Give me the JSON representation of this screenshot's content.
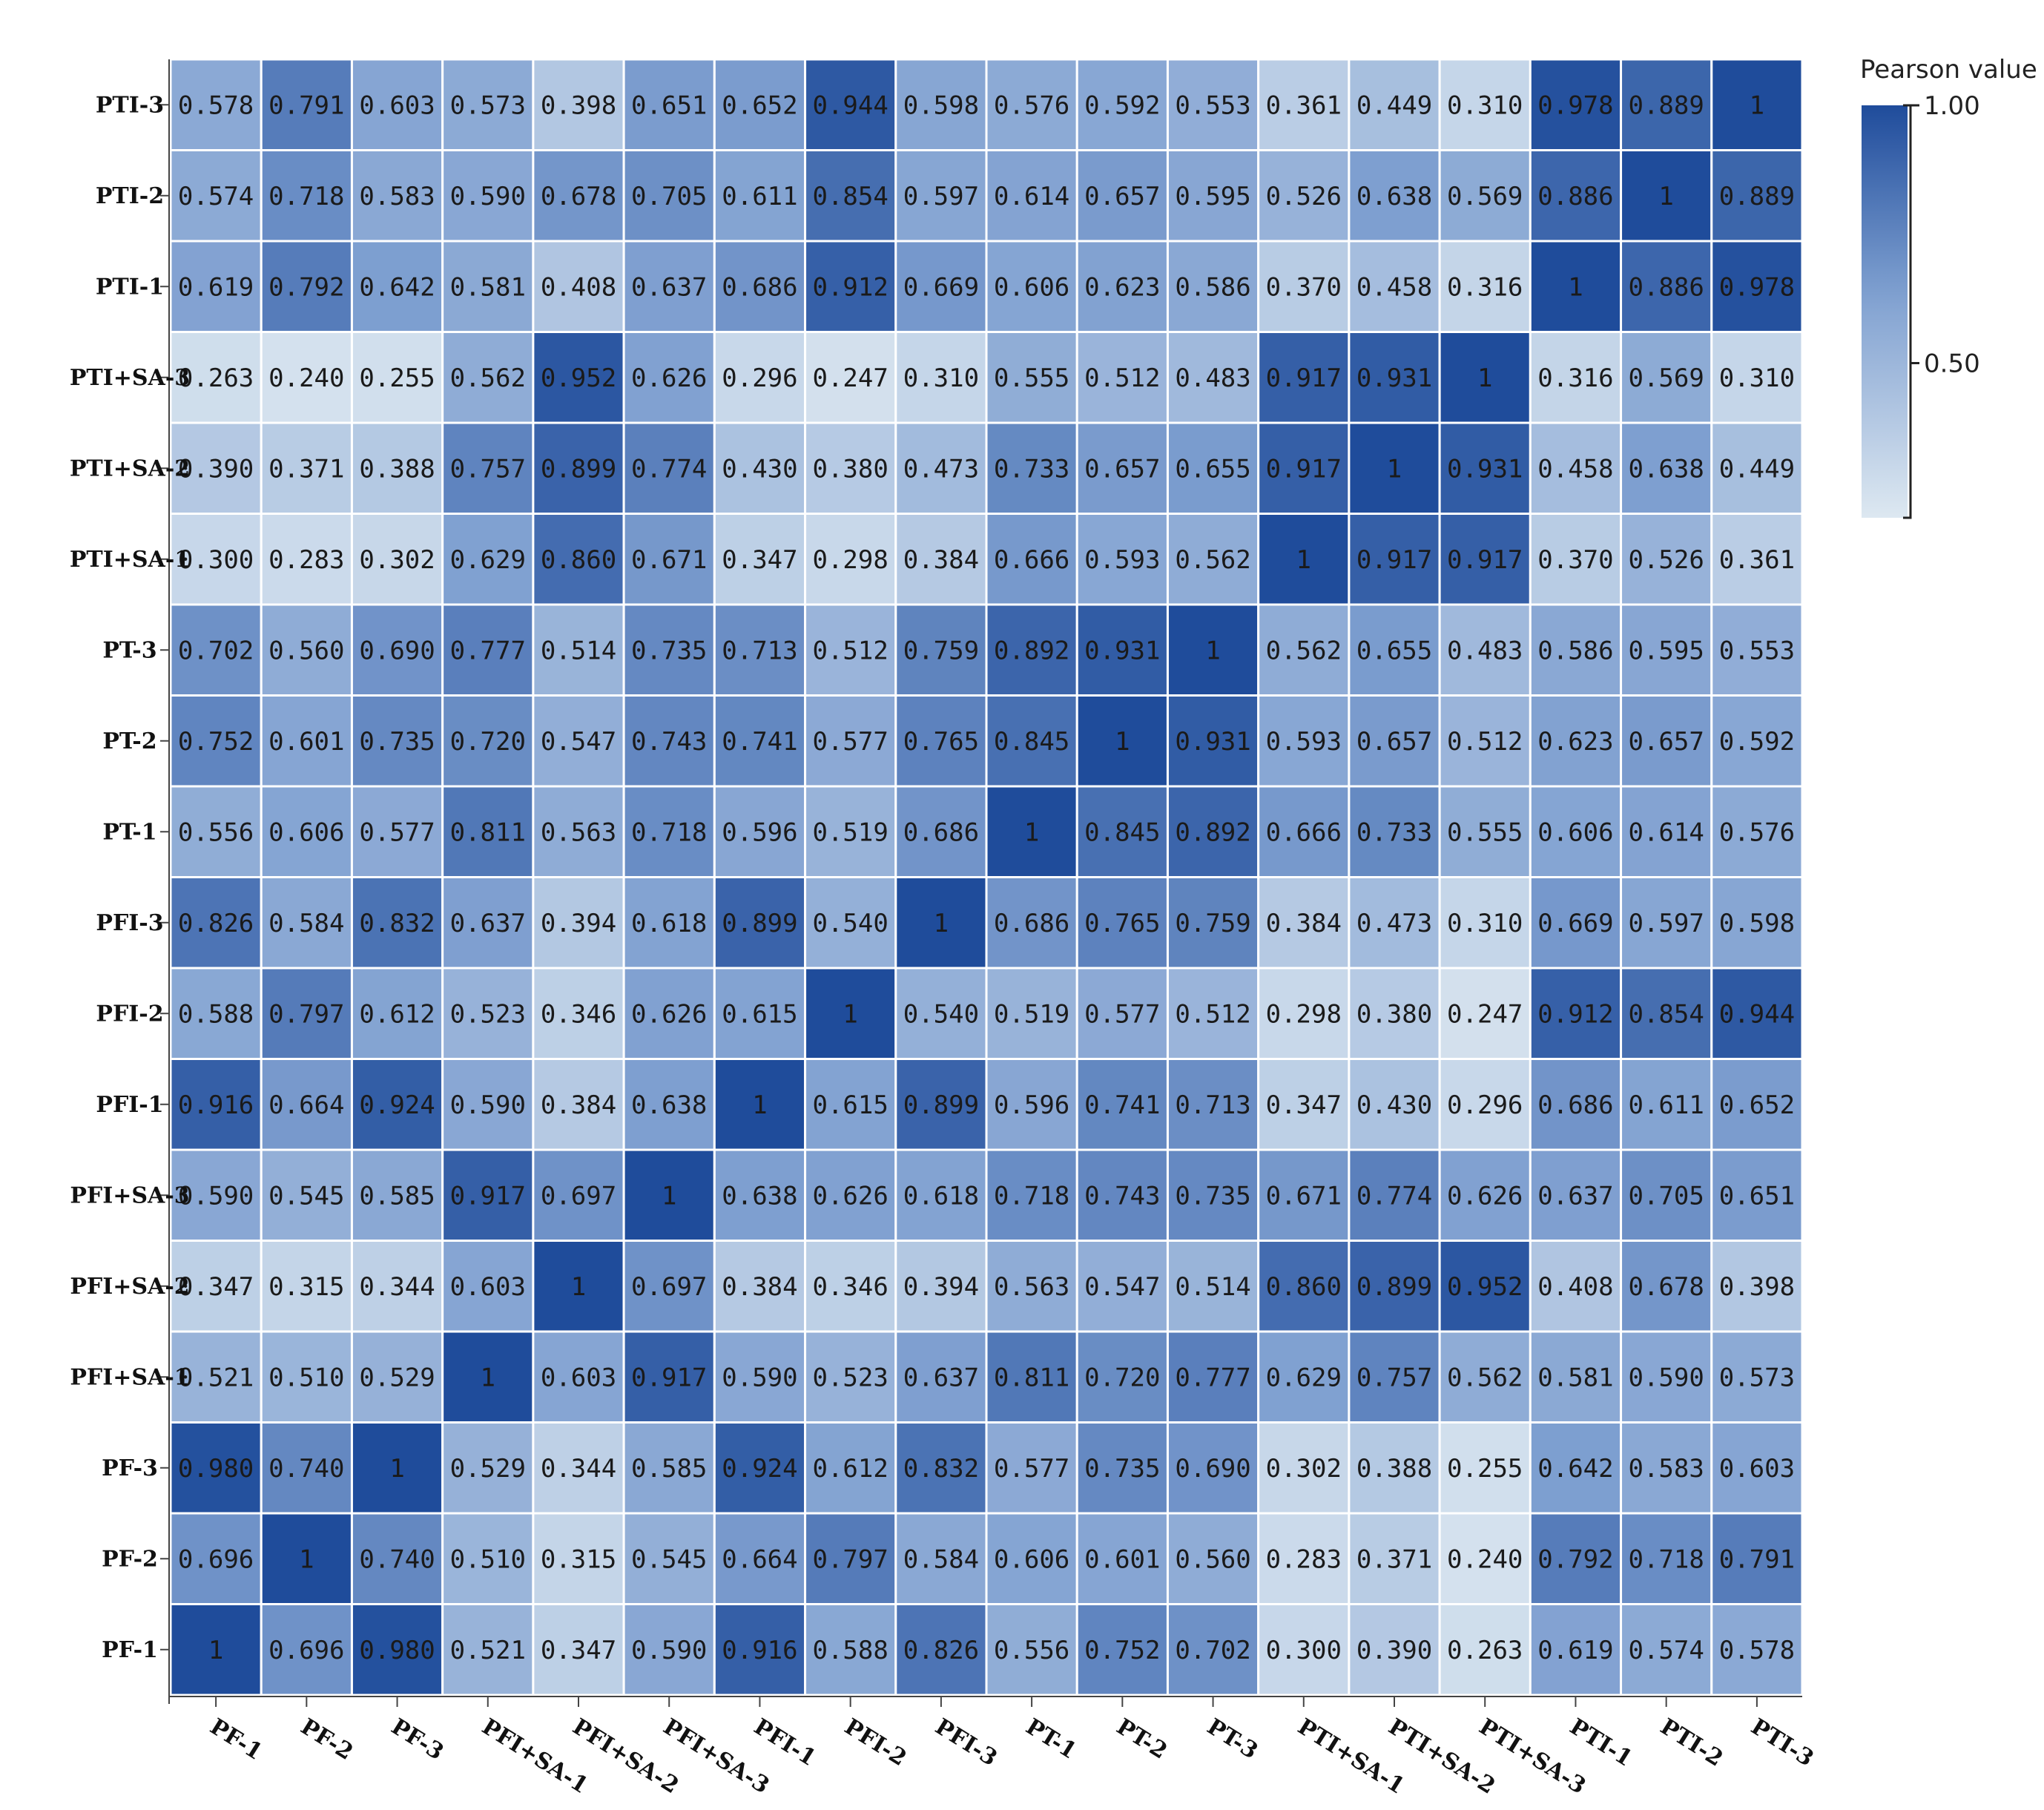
{
  "chart_data": {
    "type": "heatmap",
    "x_labels": [
      "PF-1",
      "PF-2",
      "PF-3",
      "PFI+SA-1",
      "PFI+SA-2",
      "PFI+SA-3",
      "PFI-1",
      "PFI-2",
      "PFI-3",
      "PT-1",
      "PT-2",
      "PT-3",
      "PTI+SA-1",
      "PTI+SA-2",
      "PTI+SA-3",
      "PTI-1",
      "PTI-2",
      "PTI-3"
    ],
    "y_labels": [
      "PTI-3",
      "PTI-2",
      "PTI-1",
      "PTI+SA-3",
      "PTI+SA-2",
      "PTI+SA-1",
      "PT-3",
      "PT-2",
      "PT-1",
      "PFI-3",
      "PFI-2",
      "PFI-1",
      "PFI+SA-3",
      "PFI+SA-2",
      "PFI+SA-1",
      "PF-3",
      "PF-2",
      "PF-1"
    ],
    "cell_labels": [
      [
        "0.578",
        "0.791",
        "0.603",
        "0.573",
        "0.398",
        "0.651",
        "0.652",
        "0.944",
        "0.598",
        "0.576",
        "0.592",
        "0.553",
        "0.361",
        "0.449",
        "0.310",
        "0.978",
        "0.889",
        "1"
      ],
      [
        "0.574",
        "0.718",
        "0.583",
        "0.590",
        "0.678",
        "0.705",
        "0.611",
        "0.854",
        "0.597",
        "0.614",
        "0.657",
        "0.595",
        "0.526",
        "0.638",
        "0.569",
        "0.886",
        "1",
        "0.889"
      ],
      [
        "0.619",
        "0.792",
        "0.642",
        "0.581",
        "0.408",
        "0.637",
        "0.686",
        "0.912",
        "0.669",
        "0.606",
        "0.623",
        "0.586",
        "0.370",
        "0.458",
        "0.316",
        "1",
        "0.886",
        "0.978"
      ],
      [
        "0.263",
        "0.240",
        "0.255",
        "0.562",
        "0.952",
        "0.626",
        "0.296",
        "0.247",
        "0.310",
        "0.555",
        "0.512",
        "0.483",
        "0.917",
        "0.931",
        "1",
        "0.316",
        "0.569",
        "0.310"
      ],
      [
        "0.390",
        "0.371",
        "0.388",
        "0.757",
        "0.899",
        "0.774",
        "0.430",
        "0.380",
        "0.473",
        "0.733",
        "0.657",
        "0.655",
        "0.917",
        "1",
        "0.931",
        "0.458",
        "0.638",
        "0.449"
      ],
      [
        "0.300",
        "0.283",
        "0.302",
        "0.629",
        "0.860",
        "0.671",
        "0.347",
        "0.298",
        "0.384",
        "0.666",
        "0.593",
        "0.562",
        "1",
        "0.917",
        "0.917",
        "0.370",
        "0.526",
        "0.361"
      ],
      [
        "0.702",
        "0.560",
        "0.690",
        "0.777",
        "0.514",
        "0.735",
        "0.713",
        "0.512",
        "0.759",
        "0.892",
        "0.931",
        "1",
        "0.562",
        "0.655",
        "0.483",
        "0.586",
        "0.595",
        "0.553"
      ],
      [
        "0.752",
        "0.601",
        "0.735",
        "0.720",
        "0.547",
        "0.743",
        "0.741",
        "0.577",
        "0.765",
        "0.845",
        "1",
        "0.931",
        "0.593",
        "0.657",
        "0.512",
        "0.623",
        "0.657",
        "0.592"
      ],
      [
        "0.556",
        "0.606",
        "0.577",
        "0.811",
        "0.563",
        "0.718",
        "0.596",
        "0.519",
        "0.686",
        "1",
        "0.845",
        "0.892",
        "0.666",
        "0.733",
        "0.555",
        "0.606",
        "0.614",
        "0.576"
      ],
      [
        "0.826",
        "0.584",
        "0.832",
        "0.637",
        "0.394",
        "0.618",
        "0.899",
        "0.540",
        "1",
        "0.686",
        "0.765",
        "0.759",
        "0.384",
        "0.473",
        "0.310",
        "0.669",
        "0.597",
        "0.598"
      ],
      [
        "0.588",
        "0.797",
        "0.612",
        "0.523",
        "0.346",
        "0.626",
        "0.615",
        "1",
        "0.540",
        "0.519",
        "0.577",
        "0.512",
        "0.298",
        "0.380",
        "0.247",
        "0.912",
        "0.854",
        "0.944"
      ],
      [
        "0.916",
        "0.664",
        "0.924",
        "0.590",
        "0.384",
        "0.638",
        "1",
        "0.615",
        "0.899",
        "0.596",
        "0.741",
        "0.713",
        "0.347",
        "0.430",
        "0.296",
        "0.686",
        "0.611",
        "0.652"
      ],
      [
        "0.590",
        "0.545",
        "0.585",
        "0.917",
        "0.697",
        "1",
        "0.638",
        "0.626",
        "0.618",
        "0.718",
        "0.743",
        "0.735",
        "0.671",
        "0.774",
        "0.626",
        "0.637",
        "0.705",
        "0.651"
      ],
      [
        "0.347",
        "0.315",
        "0.344",
        "0.603",
        "1",
        "0.697",
        "0.384",
        "0.346",
        "0.394",
        "0.563",
        "0.547",
        "0.514",
        "0.860",
        "0.899",
        "0.952",
        "0.408",
        "0.678",
        "0.398"
      ],
      [
        "0.521",
        "0.510",
        "0.529",
        "1",
        "0.603",
        "0.917",
        "0.590",
        "0.523",
        "0.637",
        "0.811",
        "0.720",
        "0.777",
        "0.629",
        "0.757",
        "0.562",
        "0.581",
        "0.590",
        "0.573"
      ],
      [
        "0.980",
        "0.740",
        "1",
        "0.529",
        "0.344",
        "0.585",
        "0.924",
        "0.612",
        "0.832",
        "0.577",
        "0.735",
        "0.690",
        "0.302",
        "0.388",
        "0.255",
        "0.642",
        "0.583",
        "0.603"
      ],
      [
        "0.696",
        "1",
        "0.740",
        "0.510",
        "0.315",
        "0.545",
        "0.664",
        "0.797",
        "0.584",
        "0.606",
        "0.601",
        "0.560",
        "0.283",
        "0.371",
        "0.240",
        "0.792",
        "0.718",
        "0.791"
      ],
      [
        "1",
        "0.696",
        "0.980",
        "0.521",
        "0.347",
        "0.590",
        "0.916",
        "0.588",
        "0.826",
        "0.556",
        "0.752",
        "0.702",
        "0.300",
        "0.390",
        "0.263",
        "0.619",
        "0.574",
        "0.578"
      ]
    ],
    "colorbar": {
      "title": "Pearson value",
      "ticks": [
        "1.00",
        "0.50"
      ],
      "range": [
        0.2,
        1.0
      ],
      "colors": {
        "low": "#dde8f1",
        "mid": "#7e9fd0",
        "high": "#1f4c9b"
      }
    },
    "grid": true
  }
}
